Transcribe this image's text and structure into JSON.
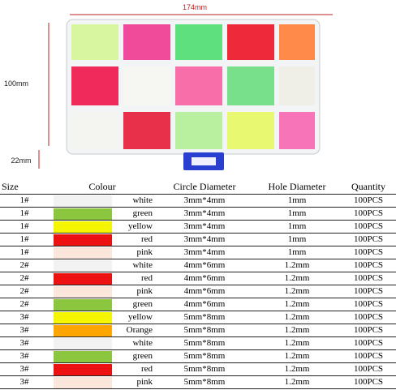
{
  "dimensions": {
    "width": "174mm",
    "height": "100mm",
    "depth": "22mm"
  },
  "table": {
    "headers": [
      "Size",
      "Colour",
      "Circle Diameter",
      "Hole Diameter",
      "Quantity"
    ],
    "rows": [
      {
        "size": "1#",
        "swatch": "#f2f2f2",
        "colour": "white",
        "circle": "3mm*4mm",
        "hole": "1mm",
        "quantity": "100PCS"
      },
      {
        "size": "1#",
        "swatch": "#8cc63f",
        "colour": "green",
        "circle": "3mm*4mm",
        "hole": "1mm",
        "quantity": "100PCS"
      },
      {
        "size": "1#",
        "swatch": "#f5f500",
        "colour": "yellow",
        "circle": "3mm*4mm",
        "hole": "1mm",
        "quantity": "100PCS"
      },
      {
        "size": "1#",
        "swatch": "#ee1111",
        "colour": "red",
        "circle": "3mm*4mm",
        "hole": "1mm",
        "quantity": "100PCS"
      },
      {
        "size": "1#",
        "swatch": "#fbe6dc",
        "colour": "pink",
        "circle": "3mm*4mm",
        "hole": "1mm",
        "quantity": "100PCS"
      },
      {
        "size": "2#",
        "swatch": "#f2f2f2",
        "colour": "white",
        "circle": "4mm*6mm",
        "hole": "1.2mm",
        "quantity": "100PCS"
      },
      {
        "size": "2#",
        "swatch": "#ee1111",
        "colour": "red",
        "circle": "4mm*6mm",
        "hole": "1.2mm",
        "quantity": "100PCS"
      },
      {
        "size": "2#",
        "swatch": "#fbe6dc",
        "colour": "pink",
        "circle": "4mm*6mm",
        "hole": "1.2mm",
        "quantity": "100PCS"
      },
      {
        "size": "2#",
        "swatch": "#8cc63f",
        "colour": "green",
        "circle": "4mm*6mm",
        "hole": "1.2mm",
        "quantity": "100PCS"
      },
      {
        "size": "3#",
        "swatch": "#f5f500",
        "colour": "yellow",
        "circle": "5mm*8mm",
        "hole": "1.2mm",
        "quantity": "100PCS"
      },
      {
        "size": "3#",
        "swatch": "#ffa500",
        "colour": "Orange",
        "circle": "5mm*8mm",
        "hole": "1.2mm",
        "quantity": "100PCS"
      },
      {
        "size": "3#",
        "swatch": "#f2f2f2",
        "colour": "white",
        "circle": "5mm*8mm",
        "hole": "1.2mm",
        "quantity": "100PCS"
      },
      {
        "size": "3#",
        "swatch": "#8cc63f",
        "colour": "green",
        "circle": "5mm*8mm",
        "hole": "1.2mm",
        "quantity": "100PCS"
      },
      {
        "size": "3#",
        "swatch": "#ee1111",
        "colour": "red",
        "circle": "5mm*8mm",
        "hole": "1.2mm",
        "quantity": "100PCS"
      },
      {
        "size": "3#",
        "swatch": "#fbe6dc",
        "colour": "pink",
        "circle": "5mm*8mm",
        "hole": "1.2mm",
        "quantity": "100PCS"
      }
    ]
  }
}
